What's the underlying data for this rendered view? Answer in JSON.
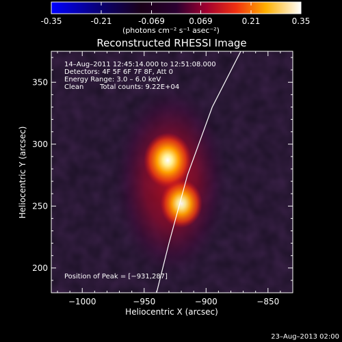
{
  "colorbar": {
    "min_label": "-0.35",
    "max_label": "0.35",
    "tick_labels": [
      "-0.35",
      "-0.21",
      "-0.069",
      "0.069",
      "0.21",
      "0.35"
    ],
    "tick_values": [
      -0.35,
      -0.21,
      -0.069,
      0.069,
      0.21,
      0.35
    ],
    "range": [
      -0.35,
      0.35
    ],
    "units_label": "(photons cm⁻² s⁻¹ asec⁻²)",
    "colormap": "RHESSI thermal (black-purple-red-orange-yellow-white)"
  },
  "chart_data": {
    "type": "heatmap",
    "title": "Reconstructed RHESSI Image",
    "xlabel": "Heliocentric X (arcsec)",
    "ylabel": "Heliocentric Y (arcsec)",
    "xlim": [
      -1025,
      -830
    ],
    "ylim": [
      180,
      375
    ],
    "x_ticks": [
      -1000,
      -950,
      -900,
      -850
    ],
    "y_ticks": [
      200,
      250,
      300,
      350
    ],
    "x_tick_labels": [
      "−1000",
      "−950",
      "−900",
      "−850"
    ],
    "y_tick_labels": [
      "200",
      "250",
      "300",
      "350"
    ],
    "sources": [
      {
        "x": -931,
        "y": 287,
        "peak_fraction": 1.0
      },
      {
        "x": -920,
        "y": 252,
        "peak_fraction": 0.88
      }
    ],
    "limb_curve": {
      "x": [
        -872,
        -895,
        -915,
        -930,
        -940
      ],
      "y": [
        375,
        330,
        275,
        220,
        180
      ]
    },
    "grid": false
  },
  "annotations": {
    "time_range": "14–Aug–2011 12:45:14.000 to 12:51:08.000",
    "detectors": "Detectors: 4F 5F 6F 7F 8F, Att 0",
    "energy_range": "Energy Range: 3.0 – 6.0 keV",
    "method": "Clean",
    "total_counts": "Total counts: 9.22E+04",
    "peak_position": "Position of Peak = [−931,287]"
  },
  "footer": {
    "date": "23–Aug–2013 02:00"
  }
}
